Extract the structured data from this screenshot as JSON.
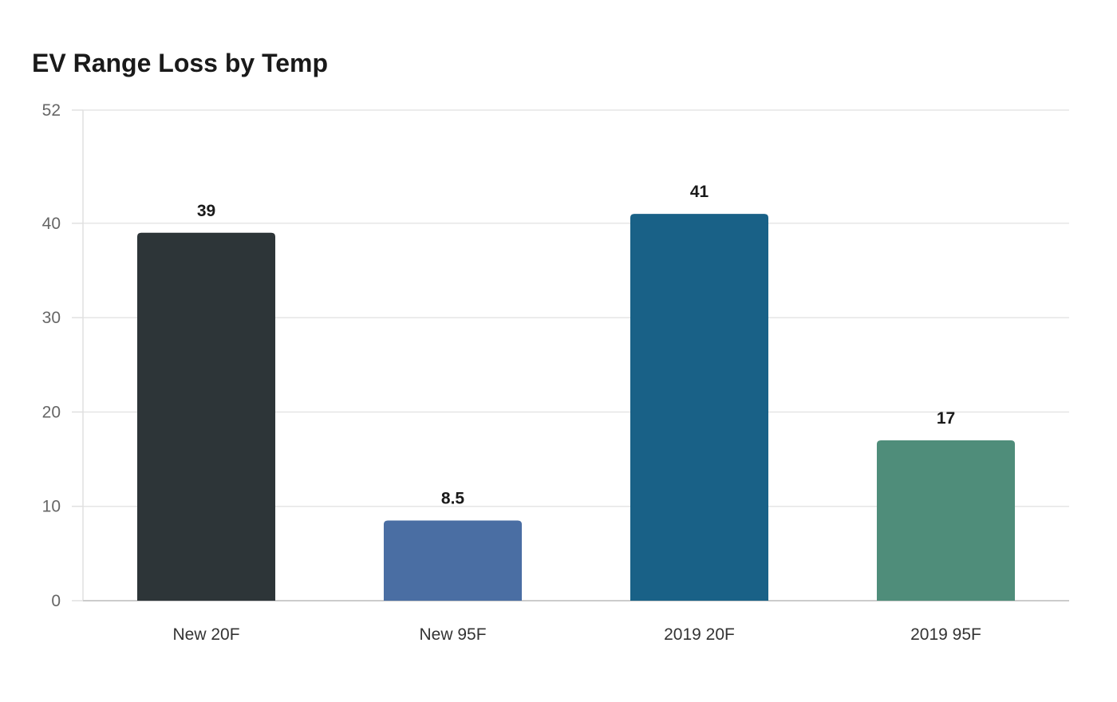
{
  "chart_data": {
    "type": "bar",
    "title": "EV Range Loss by Temp",
    "xlabel": "",
    "ylabel": "",
    "categories": [
      "New 20F",
      "New 95F",
      "2019 20F",
      "2019 95F"
    ],
    "values": [
      39,
      8.5,
      41,
      17
    ],
    "value_labels": [
      "39",
      "8.5",
      "41",
      "17"
    ],
    "colors": [
      "#2d3538",
      "#4a6ea3",
      "#196187",
      "#4f8d7a"
    ],
    "ylim": [
      0,
      52
    ],
    "yticks": [
      0,
      10,
      20,
      30,
      40,
      52
    ],
    "grid": true,
    "legend": "none"
  }
}
